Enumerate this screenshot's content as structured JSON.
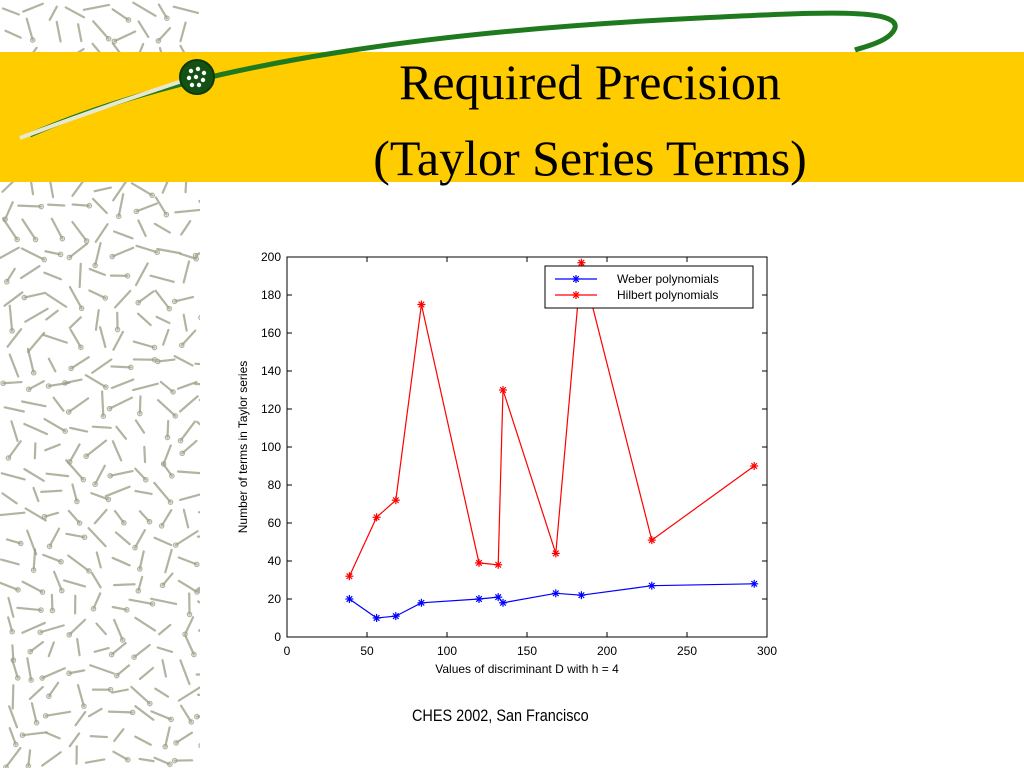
{
  "slide": {
    "title_line1": "Required Precision",
    "title_line2": "(Taylor Series Terms)",
    "footer": "CHES 2002, San Francisco"
  },
  "colors": {
    "title_band": "#ffcc00",
    "swoosh": "#1f7a1f",
    "pattern": "#9a9a82"
  },
  "chart_data": {
    "type": "line",
    "xlabel": "Values of discriminant D with h = 4",
    "ylabel": "Number of terms in Taylor series",
    "xlim": [
      0,
      300
    ],
    "ylim": [
      0,
      200
    ],
    "xticks": [
      0,
      50,
      100,
      150,
      200,
      250,
      300
    ],
    "yticks": [
      0,
      20,
      40,
      60,
      80,
      100,
      120,
      140,
      160,
      180,
      200
    ],
    "grid": false,
    "legend_position": "top-right",
    "series": [
      {
        "name": "Weber polynomials",
        "color": "#0000ff",
        "x": [
          39,
          56,
          68,
          84,
          120,
          132,
          135,
          168,
          184,
          228,
          292
        ],
        "y": [
          20,
          10,
          11,
          18,
          20,
          21,
          18,
          23,
          22,
          27,
          28
        ]
      },
      {
        "name": "Hilbert polynomials",
        "color": "#ff0000",
        "x": [
          39,
          56,
          68,
          84,
          120,
          132,
          135,
          168,
          184,
          228,
          292
        ],
        "y": [
          32,
          63,
          72,
          175,
          39,
          38,
          130,
          44,
          197,
          51,
          90
        ]
      }
    ]
  }
}
